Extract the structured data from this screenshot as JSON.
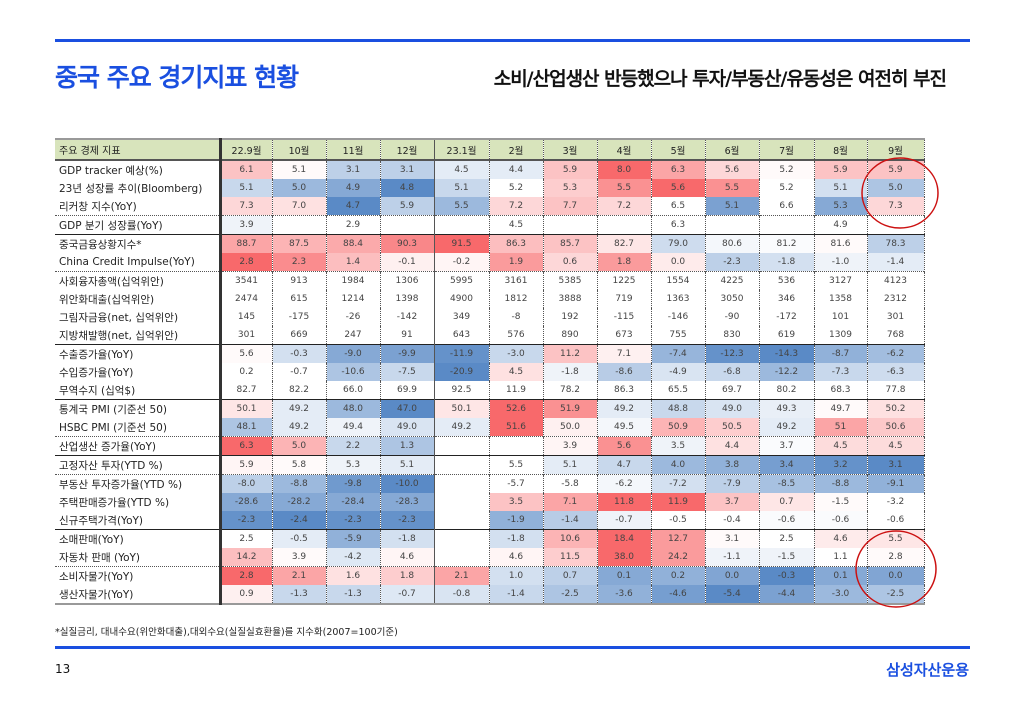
{
  "header": {
    "title": "중국 주요 경기지표 현황",
    "subtitle": "소비/산업생산 반등했으나 투자/부동산/유동성은 여전히 부진"
  },
  "colors": {
    "brand": "#1a4fe0",
    "heat_high": "#f8696b",
    "heat_low": "#5a8ac6",
    "header_bg": "#d8e4bc",
    "highlight_circle": "#cc1111"
  },
  "table": {
    "corner": "주요 경제 지표",
    "columns": [
      "22.9월",
      "10월",
      "11월",
      "12월",
      "23.1월",
      "2월",
      "3월",
      "4월",
      "5월",
      "6월",
      "7월",
      "8월",
      "9월"
    ],
    "rows": [
      {
        "label": "GDP tracker 예상(%)",
        "sep": "solid",
        "values": [
          "6.1",
          "5.1",
          "3.1",
          "3.1",
          "4.5",
          "4.4",
          "5.9",
          "8.0",
          "6.3",
          "5.6",
          "5.2",
          "5.9",
          "5.9"
        ],
        "heat": [
          1.2,
          0.1,
          -1.2,
          -1.2,
          -0.5,
          -0.5,
          1.2,
          3,
          1.8,
          0.8,
          0.1,
          1.2,
          1.2
        ]
      },
      {
        "label": "23년 성장률 추이(Bloomberg)",
        "sep": "none",
        "values": [
          "5.1",
          "5.0",
          "4.9",
          "4.8",
          "5.1",
          "5.2",
          "5.3",
          "5.5",
          "5.6",
          "5.5",
          "5.2",
          "5.1",
          "5.0"
        ],
        "heat": [
          -1,
          -1.8,
          -2.2,
          -3,
          -1,
          0,
          1,
          2.2,
          3,
          2.2,
          0,
          -0.8,
          -1.5
        ]
      },
      {
        "label": "리커창 지수(YoY)",
        "sep": "none",
        "values": [
          "7.3",
          "7.0",
          "4.7",
          "5.9",
          "5.5",
          "7.2",
          "7.7",
          "7.2",
          "6.5",
          "5.1",
          "6.6",
          "5.3",
          "7.3"
        ],
        "heat": [
          0.8,
          0.6,
          -3,
          -1.2,
          -1.8,
          0.8,
          1.2,
          0.8,
          0,
          -2.4,
          0,
          -2.2,
          0.8
        ]
      },
      {
        "label": "GDP 분기 성장률(YoY)",
        "sep": "dot",
        "values": [
          "3.9",
          "",
          "2.9",
          "",
          "",
          "4.5",
          "",
          "",
          "6.3",
          "",
          "",
          "4.9",
          ""
        ],
        "heat": [
          -0.3,
          null,
          null,
          null,
          null,
          null,
          null,
          null,
          null,
          null,
          null,
          null,
          null
        ]
      },
      {
        "label": "중국금융상황지수*",
        "sep": "solid",
        "values": [
          "88.7",
          "87.5",
          "88.4",
          "90.3",
          "91.5",
          "86.3",
          "85.7",
          "82.7",
          "79.0",
          "80.6",
          "81.2",
          "81.6",
          "78.3"
        ],
        "heat": [
          1.8,
          1.5,
          1.7,
          2.4,
          3,
          1.3,
          1.2,
          0.5,
          -0.9,
          -0.2,
          -0.1,
          0.1,
          -1.2
        ]
      },
      {
        "label": "China Credit Impulse(YoY)",
        "sep": "none",
        "values": [
          "2.8",
          "2.3",
          "1.4",
          "-0.1",
          "-0.2",
          "1.9",
          "0.6",
          "1.8",
          "0.0",
          "-2.3",
          "-1.8",
          "-1.0",
          "-1.4"
        ],
        "heat": [
          3,
          2.3,
          1.3,
          0.3,
          0.2,
          2,
          0.8,
          2,
          0.4,
          -1.2,
          -0.8,
          -0.3,
          -0.5
        ]
      },
      {
        "label": "사회융자총액(십억위안)",
        "sep": "dot",
        "values": [
          "3541",
          "913",
          "1984",
          "1306",
          "5995",
          "3161",
          "5385",
          "1225",
          "1554",
          "4225",
          "536",
          "3127",
          "4123"
        ],
        "heat": null
      },
      {
        "label": "위안화대출(십억위안)",
        "sep": "none",
        "values": [
          "2474",
          "615",
          "1214",
          "1398",
          "4900",
          "1812",
          "3888",
          "719",
          "1363",
          "3050",
          "346",
          "1358",
          "2312"
        ],
        "heat": null
      },
      {
        "label": "그림자금융(net, 십억위안)",
        "sep": "none",
        "values": [
          "145",
          "-175",
          "-26",
          "-142",
          "349",
          "-8",
          "192",
          "-115",
          "-146",
          "-90",
          "-172",
          "101",
          "301"
        ],
        "heat": null
      },
      {
        "label": "지방채발행(net, 십억위안)",
        "sep": "none",
        "values": [
          "301",
          "669",
          "247",
          "91",
          "643",
          "576",
          "890",
          "673",
          "755",
          "830",
          "619",
          "1309",
          "768"
        ],
        "heat": null
      },
      {
        "label": "수출증가율(YoY)",
        "sep": "solid",
        "values": [
          "5.6",
          "-0.3",
          "-9.0",
          "-9.9",
          "-11.9",
          "-3.0",
          "11.2",
          "7.1",
          "-7.4",
          "-12.3",
          "-14.3",
          "-8.7",
          "-6.2"
        ],
        "heat": [
          0.1,
          -0.8,
          -2.2,
          -2.4,
          -2.8,
          -1,
          1.2,
          0.3,
          -1.9,
          -2.8,
          -3,
          -2,
          -1.7
        ]
      },
      {
        "label": "수입증가율(YoY)",
        "sep": "none",
        "values": [
          "0.2",
          "-0.7",
          "-10.6",
          "-7.5",
          "-20.9",
          "4.5",
          "-1.8",
          "-8.6",
          "-4.9",
          "-6.8",
          "-12.2",
          "-7.3",
          "-6.3"
        ],
        "heat": [
          0,
          0,
          -1.5,
          -1,
          -3,
          0.6,
          -0.3,
          -1.3,
          -0.7,
          -1,
          -1.8,
          -1,
          -0.9
        ]
      },
      {
        "label": "무역수지 (십억$)",
        "sep": "none",
        "values": [
          "82.7",
          "82.2",
          "66.0",
          "69.9",
          "92.5",
          "11.9",
          "78.2",
          "86.3",
          "65.5",
          "69.7",
          "80.2",
          "68.3",
          "77.8"
        ],
        "heat": null
      },
      {
        "label": "통계국 PMI (기준선 50)",
        "sep": "solid",
        "values": [
          "50.1",
          "49.2",
          "48.0",
          "47.0",
          "50.1",
          "52.6",
          "51.9",
          "49.2",
          "48.8",
          "49.0",
          "49.3",
          "49.7",
          "50.2"
        ],
        "heat": [
          0.5,
          -0.5,
          -1.8,
          -3,
          0.5,
          3,
          2.2,
          -0.5,
          -1,
          -0.7,
          -0.4,
          0.1,
          0.6
        ]
      },
      {
        "label": "HSBC PMI (기준선 50)",
        "sep": "none",
        "values": [
          "48.1",
          "49.2",
          "49.4",
          "49.0",
          "49.2",
          "51.6",
          "50.0",
          "49.5",
          "50.9",
          "50.5",
          "49.2",
          "51",
          "50.6"
        ],
        "heat": [
          -1.5,
          -0.5,
          -0.3,
          -0.7,
          -0.5,
          3,
          0.3,
          -0.2,
          1.5,
          1,
          -0.5,
          1.8,
          1.1
        ]
      },
      {
        "label": "산업생산 증가율(YoY)",
        "sep": "dot",
        "values": [
          "6.3",
          "5.0",
          "2.2",
          "1.3",
          "",
          "",
          "3.9",
          "5.6",
          "3.5",
          "4.4",
          "3.7",
          "4.5",
          "4.5"
        ],
        "heat": [
          3,
          1.5,
          -1,
          -1.5,
          null,
          null,
          0.2,
          2.2,
          -0.3,
          0.6,
          -0.1,
          0.7,
          0.7
        ]
      },
      {
        "label": "고정자산 투자(YTD %)",
        "sep": "solid",
        "values": [
          "5.9",
          "5.8",
          "5.3",
          "5.1",
          "",
          "5.5",
          "5.1",
          "4.7",
          "4.0",
          "3.8",
          "3.4",
          "3.2",
          "3.1"
        ],
        "heat": [
          0.2,
          0.1,
          -0.3,
          -0.5,
          null,
          0,
          -0.5,
          -1,
          -1.8,
          -2,
          -2.5,
          -2.8,
          -3
        ]
      },
      {
        "label": "부동산 투자증가율(YTD %)",
        "sep": "dot",
        "values": [
          "-8.0",
          "-8.8",
          "-9.8",
          "-10.0",
          "",
          "-5.7",
          "-5.8",
          "-6.2",
          "-7.2",
          "-7.9",
          "-8.5",
          "-8.8",
          "-9.1"
        ],
        "heat": [
          -1.2,
          -1.8,
          -2.6,
          -3,
          null,
          0,
          0,
          -0.2,
          -0.8,
          -1.2,
          -1.6,
          -1.8,
          -2
        ]
      },
      {
        "label": "주택판매증가율(YTD %)",
        "sep": "none",
        "values": [
          "-28.6",
          "-28.2",
          "-28.4",
          "-28.3",
          "",
          "3.5",
          "7.1",
          "11.8",
          "11.9",
          "3.7",
          "0.7",
          "-1.5",
          "-3.2"
        ],
        "heat": [
          -2.2,
          -2.2,
          -2.2,
          -2.2,
          null,
          1.2,
          1.8,
          3,
          3,
          1.2,
          0.5,
          0.1,
          0
        ]
      },
      {
        "label": "신규주택가격(YoY)",
        "sep": "none",
        "values": [
          "-2.3",
          "-2.4",
          "-2.3",
          "-2.3",
          "",
          "-1.9",
          "-1.4",
          "-0.7",
          "-0.5",
          "-0.4",
          "-0.6",
          "-0.6",
          "-0.6"
        ],
        "heat": [
          -2.8,
          -3,
          -2.8,
          -2.8,
          null,
          -2,
          -1.3,
          -0.3,
          0,
          0,
          -0.1,
          -0.1,
          0
        ]
      },
      {
        "label": "소매판매(YoY)",
        "sep": "solid",
        "values": [
          "2.5",
          "-0.5",
          "-5.9",
          "-1.8",
          "",
          "-1.8",
          "10.6",
          "18.4",
          "12.7",
          "3.1",
          "2.5",
          "4.6",
          "5.5"
        ],
        "heat": [
          0,
          -0.5,
          -2,
          -0.8,
          null,
          -0.8,
          1.5,
          3,
          2,
          0.1,
          0,
          0.4,
          0.5
        ]
      },
      {
        "label": "자동차 판매 (YoY)",
        "sep": "none",
        "values": [
          "14.2",
          "3.9",
          "-4.2",
          "4.6",
          "",
          "4.6",
          "11.5",
          "38.0",
          "24.2",
          "-1.1",
          "-1.5",
          "1.1",
          "2.8"
        ],
        "heat": [
          1.3,
          0.1,
          -0.6,
          0.2,
          null,
          0.2,
          1,
          3,
          2,
          -0.3,
          -0.3,
          0,
          0.1
        ]
      },
      {
        "label": "소비자물가(YoY)",
        "sep": "dot",
        "values": [
          "2.8",
          "2.1",
          "1.6",
          "1.8",
          "2.1",
          "1.0",
          "0.7",
          "0.1",
          "0.2",
          "0.0",
          "-0.3",
          "0.1",
          "0.0"
        ],
        "heat": [
          3,
          1.8,
          0.6,
          1,
          1.8,
          -0.8,
          -1.2,
          -2.2,
          -2,
          -2.3,
          -3,
          -2.2,
          -2.3
        ]
      },
      {
        "label": "생산자물가(YoY)",
        "sep": "none",
        "values": [
          "0.9",
          "-1.3",
          "-1.3",
          "-0.7",
          "-0.8",
          "-1.4",
          "-2.5",
          "-3.6",
          "-4.6",
          "-5.4",
          "-4.4",
          "-3.0",
          "-2.5"
        ],
        "heat": [
          0.3,
          -1,
          -1,
          -0.6,
          -0.7,
          -1,
          -1.5,
          -2,
          -2.5,
          -3,
          -2.4,
          -1.8,
          -1.5
        ]
      }
    ]
  },
  "footnote": "*실질금리, 대내수요(위안화대출),대외수요(실질실효환율)를 지수화(2007=100기준)",
  "footer": {
    "page": "13",
    "logo": "삼성자산운용"
  }
}
